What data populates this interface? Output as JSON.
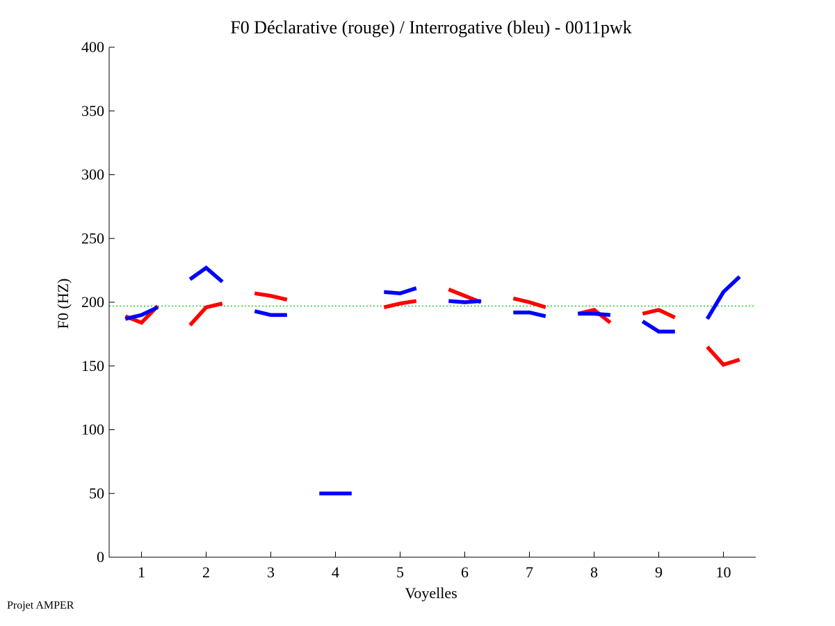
{
  "chart_data": {
    "type": "line",
    "title": "F0 Déclarative (rouge) / Interrogative (bleu) - 0011pwk",
    "xlabel": "Voyelles",
    "ylabel": "F0 (HZ)",
    "ylim": [
      0,
      400
    ],
    "xlim": [
      0.5,
      10.5
    ],
    "x_ticks": [
      "1",
      "2",
      "3",
      "4",
      "5",
      "6",
      "7",
      "8",
      "9",
      "10"
    ],
    "y_ticks": [
      "0",
      "50",
      "100",
      "150",
      "200",
      "250",
      "300",
      "350",
      "400"
    ],
    "grid": false,
    "reference_line": {
      "y": 197,
      "color": "#00c000",
      "style": "dotted"
    },
    "series": [
      {
        "color": "#ff0000",
        "segments": [
          {
            "vowel": 1,
            "x": [
              0.75,
              1.0,
              1.25
            ],
            "y": [
              189,
              184,
              197
            ]
          },
          {
            "vowel": 2,
            "x": [
              1.75,
              2.0,
              2.25
            ],
            "y": [
              182,
              196,
              199
            ]
          },
          {
            "vowel": 3,
            "x": [
              2.75,
              3.0,
              3.25
            ],
            "y": [
              207,
              205,
              202
            ]
          },
          {
            "vowel": 5,
            "x": [
              4.75,
              5.0,
              5.25
            ],
            "y": [
              196,
              199,
              201
            ]
          },
          {
            "vowel": 6,
            "x": [
              5.75,
              6.0,
              6.25
            ],
            "y": [
              210,
              205,
              200
            ]
          },
          {
            "vowel": 7,
            "x": [
              6.75,
              7.0,
              7.25
            ],
            "y": [
              203,
              200,
              196
            ]
          },
          {
            "vowel": 8,
            "x": [
              7.75,
              8.0,
              8.25
            ],
            "y": [
              191,
              194,
              184
            ]
          },
          {
            "vowel": 9,
            "x": [
              8.75,
              9.0,
              9.25
            ],
            "y": [
              191,
              194,
              188
            ]
          },
          {
            "vowel": 10,
            "x": [
              9.75,
              10.0,
              10.25
            ],
            "y": [
              165,
              151,
              155
            ]
          }
        ]
      },
      {
        "color": "#0000ff",
        "segments": [
          {
            "vowel": 1,
            "x": [
              0.75,
              1.0,
              1.25
            ],
            "y": [
              187,
              190,
              196
            ]
          },
          {
            "vowel": 2,
            "x": [
              1.75,
              2.0,
              2.25
            ],
            "y": [
              218,
              227,
              216
            ]
          },
          {
            "vowel": 3,
            "x": [
              2.75,
              3.0,
              3.25
            ],
            "y": [
              193,
              190,
              190
            ]
          },
          {
            "vowel": 4,
            "x": [
              3.75,
              4.0,
              4.25
            ],
            "y": [
              50,
              50,
              50
            ]
          },
          {
            "vowel": 5,
            "x": [
              4.75,
              5.0,
              5.25
            ],
            "y": [
              208,
              207,
              211
            ]
          },
          {
            "vowel": 6,
            "x": [
              5.75,
              6.0,
              6.25
            ],
            "y": [
              201,
              200,
              201
            ]
          },
          {
            "vowel": 7,
            "x": [
              6.75,
              7.0,
              7.25
            ],
            "y": [
              192,
              192,
              189
            ]
          },
          {
            "vowel": 8,
            "x": [
              7.75,
              8.0,
              8.25
            ],
            "y": [
              191,
              191,
              190
            ]
          },
          {
            "vowel": 9,
            "x": [
              8.75,
              9.0,
              9.25
            ],
            "y": [
              185,
              177,
              177
            ]
          },
          {
            "vowel": 10,
            "x": [
              9.75,
              10.0,
              10.25
            ],
            "y": [
              187,
              208,
              220
            ]
          }
        ]
      }
    ]
  },
  "footer": "Projet AMPER"
}
